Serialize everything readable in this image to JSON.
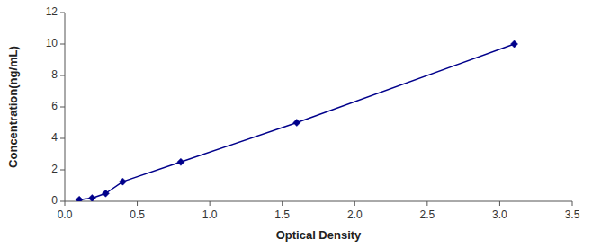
{
  "chart_data": {
    "type": "line",
    "x": [
      0.1,
      0.188,
      0.282,
      0.4,
      0.8,
      1.6,
      3.1
    ],
    "values": [
      0.1,
      0.2,
      0.5,
      1.25,
      2.5,
      5.0,
      10.0
    ],
    "xlim": [
      0,
      3.5
    ],
    "ylim": [
      0,
      12
    ],
    "xticks": [
      {
        "value": 0,
        "label": "0.0"
      },
      0.5,
      {
        "value": 1,
        "label": "1.0"
      },
      1.5,
      {
        "value": 2,
        "label": "2.0"
      },
      2.5,
      {
        "value": 3,
        "label": "3.0"
      },
      3.5
    ],
    "yticks": [
      0,
      2,
      4,
      6,
      8,
      10,
      12
    ],
    "xlabel": "Optical Density",
    "ylabel": "Concentration(ng/mL)",
    "color": "#00008B",
    "marker": "diamond",
    "grid": false
  }
}
